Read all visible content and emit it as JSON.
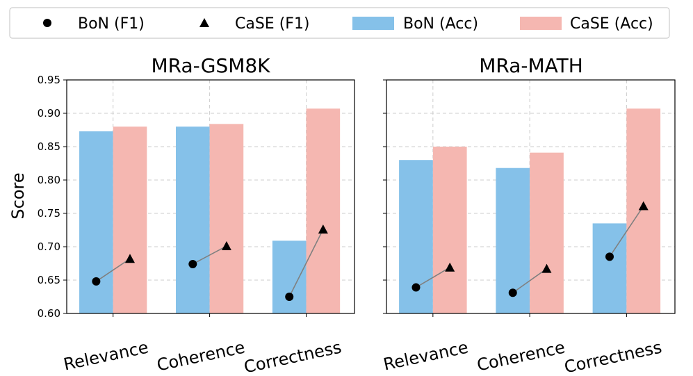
{
  "legend": {
    "items": [
      {
        "label": "BoN (F1)",
        "kind": "circle",
        "color": "#000000"
      },
      {
        "label": "CaSE (F1)",
        "kind": "triangle",
        "color": "#000000"
      },
      {
        "label": "BoN (Acc)",
        "kind": "bar",
        "color": "#85c1e9"
      },
      {
        "label": "CaSE (Acc)",
        "kind": "bar",
        "color": "#f5b7b1"
      }
    ]
  },
  "colors": {
    "bon_bar": "#85c1e9",
    "case_bar": "#f5b7b1",
    "marker": "#000000",
    "connector": "#808080",
    "grid": "#cccccc"
  },
  "chart_data": [
    {
      "type": "bar",
      "title": "MRa-GSM8K",
      "ylabel": "Score",
      "xlabel": "",
      "ylim": [
        0.6,
        0.95
      ],
      "yticks": [
        "0.60",
        "0.65",
        "0.70",
        "0.75",
        "0.80",
        "0.85",
        "0.90",
        "0.95"
      ],
      "grid": true,
      "categories": [
        "Relevance",
        "Coherence",
        "Correctness"
      ],
      "series": [
        {
          "name": "BoN (Acc)",
          "values": [
            0.873,
            0.88,
            0.709
          ]
        },
        {
          "name": "CaSE (Acc)",
          "values": [
            0.88,
            0.884,
            0.907
          ]
        },
        {
          "name": "BoN (F1)",
          "values": [
            0.648,
            0.674,
            0.625
          ]
        },
        {
          "name": "CaSE (F1)",
          "values": [
            0.682,
            0.701,
            0.726
          ]
        }
      ]
    },
    {
      "type": "bar",
      "title": "MRa-MATH",
      "ylabel": "",
      "xlabel": "",
      "ylim": [
        0.6,
        0.95
      ],
      "yticks": [
        "0.60",
        "0.65",
        "0.70",
        "0.75",
        "0.80",
        "0.85",
        "0.90",
        "0.95"
      ],
      "grid": true,
      "categories": [
        "Relevance",
        "Coherence",
        "Correctness"
      ],
      "series": [
        {
          "name": "BoN (Acc)",
          "values": [
            0.83,
            0.818,
            0.735
          ]
        },
        {
          "name": "CaSE (Acc)",
          "values": [
            0.85,
            0.841,
            0.907
          ]
        },
        {
          "name": "BoN (F1)",
          "values": [
            0.639,
            0.631,
            0.685
          ]
        },
        {
          "name": "CaSE (F1)",
          "values": [
            0.669,
            0.667,
            0.761
          ]
        }
      ]
    }
  ]
}
